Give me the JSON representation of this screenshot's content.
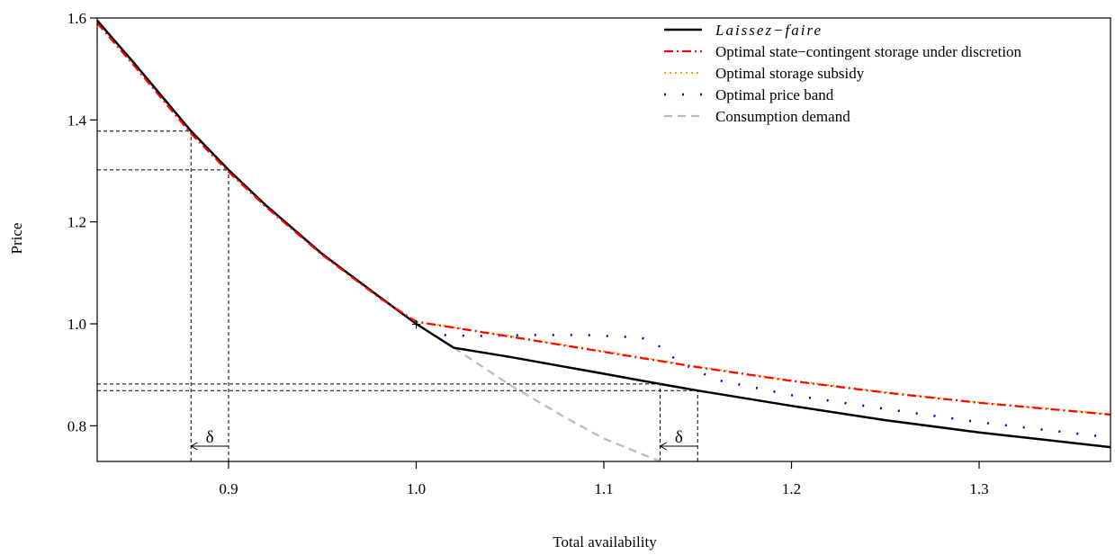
{
  "chart_data": {
    "type": "line",
    "xlabel": "Total availability",
    "ylabel": "Price",
    "xlim": [
      0.83,
      1.37
    ],
    "ylim": [
      0.73,
      1.6
    ],
    "x_ticks": [
      "0.9",
      "1.0",
      "1.1",
      "1.2",
      "1.3"
    ],
    "y_ticks": [
      "0.8",
      "1.0",
      "1.2",
      "1.4",
      "1.6"
    ],
    "legend_position": "top-right",
    "series": [
      {
        "name": "Laissez−faire",
        "color": "#000000",
        "style": "solid",
        "x": [
          0.83,
          0.85,
          0.88,
          0.9,
          0.92,
          0.95,
          0.98,
          1.0,
          1.02,
          1.05,
          1.1,
          1.13,
          1.15,
          1.2,
          1.25,
          1.3,
          1.37
        ],
        "y": [
          1.595,
          1.51,
          1.378,
          1.302,
          1.232,
          1.137,
          1.054,
          1.0,
          0.953,
          0.935,
          0.902,
          0.882,
          0.869,
          0.839,
          0.811,
          0.787,
          0.758
        ]
      },
      {
        "name": "Optimal state−contingent storage under discretion",
        "color": "#ff0000",
        "style": "dashdot",
        "x": [
          0.83,
          0.85,
          0.88,
          0.9,
          0.92,
          0.95,
          0.98,
          1.0,
          1.05,
          1.1,
          1.15,
          1.2,
          1.25,
          1.3,
          1.37
        ],
        "y": [
          1.59,
          1.505,
          1.373,
          1.298,
          1.229,
          1.135,
          1.052,
          1.004,
          0.975,
          0.945,
          0.915,
          0.888,
          0.865,
          0.845,
          0.822
        ]
      },
      {
        "name": "Optimal storage subsidy",
        "color": "#ffa500",
        "style": "dotted",
        "x": [
          1.0,
          1.05,
          1.1,
          1.15,
          1.2,
          1.25,
          1.3,
          1.37
        ],
        "y": [
          1.005,
          0.976,
          0.946,
          0.916,
          0.889,
          0.866,
          0.846,
          0.823
        ]
      },
      {
        "name": "Optimal price band",
        "color": "#0000cc",
        "style": "dotted",
        "x": [
          1.015,
          1.03,
          1.06,
          1.09,
          1.12,
          1.13,
          1.14,
          1.16,
          1.2,
          1.25,
          1.3,
          1.37
        ],
        "y": [
          0.978,
          0.976,
          0.978,
          0.978,
          0.973,
          0.955,
          0.925,
          0.89,
          0.86,
          0.833,
          0.807,
          0.777
        ]
      },
      {
        "name": "Consumption demand",
        "color": "#bbbbbb",
        "style": "dashed",
        "x": [
          1.02,
          1.05,
          1.08,
          1.1,
          1.13
        ],
        "y": [
          0.953,
          0.88,
          0.815,
          0.775,
          0.73
        ]
      }
    ],
    "annotations": [
      {
        "text": "δ",
        "x": 0.89,
        "y": 0.8,
        "arrow_from": 0.9,
        "arrow_to": 0.88
      },
      {
        "text": "δ",
        "x": 1.14,
        "y": 0.8,
        "arrow_from": 1.15,
        "arrow_to": 1.13
      }
    ],
    "reference_lines": {
      "vertical_x": [
        0.88,
        0.9,
        1.13,
        1.15
      ],
      "horizontal_y": [
        1.378,
        1.302,
        0.882,
        0.869
      ],
      "marker_point": {
        "x": 1.0,
        "y": 1.0,
        "symbol": "+"
      }
    }
  }
}
